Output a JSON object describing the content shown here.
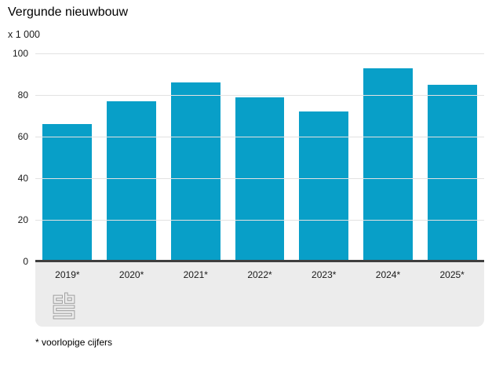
{
  "title": "Vergunde nieuwbouw",
  "unit_label": "x 1 000",
  "footnote": "* voorlopige cijfers",
  "logo_name": "cbs-logo",
  "colors": {
    "bar": "#089fc8",
    "axis": "#3f3f3f",
    "grid": "#e2e2e2",
    "band": "#ececec",
    "logo_stroke": "#a0a0a0"
  },
  "chart_data": {
    "type": "bar",
    "categories": [
      "2019*",
      "2020*",
      "2021*",
      "2022*",
      "2023*",
      "2024*",
      "2025*"
    ],
    "values": [
      66,
      77,
      86,
      79,
      72,
      93,
      85
    ],
    "title": "Vergunde nieuwbouw",
    "xlabel": "",
    "ylabel": "x 1 000",
    "ylim": [
      0,
      100
    ],
    "yticks": [
      0,
      20,
      40,
      60,
      80,
      100
    ],
    "grid": true,
    "legend": false,
    "footnote": "* voorlopige cijfers"
  }
}
